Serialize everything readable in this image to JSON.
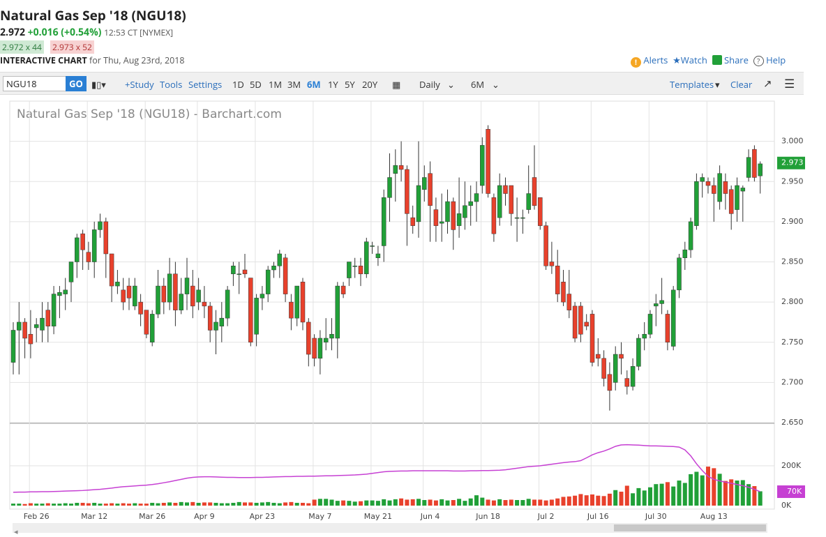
{
  "header": {
    "title": "Natural Gas Sep '18 (NGU18)",
    "last": "2.972",
    "change": "+0.016 (+0.54%)",
    "time": "12:53 CT [NYMEX]",
    "bid": "2.972 x 44",
    "ask": "2.973 x 52",
    "chart_label": "INTERACTIVE CHART",
    "chart_date": "for Thu, Aug 23rd, 2018",
    "links": [
      "Alerts",
      "Watch",
      "Share",
      "Help"
    ]
  },
  "toolbar": {
    "symbol": "NGU18",
    "go": "GO",
    "tools": [
      "+Study",
      "Tools",
      "Settings"
    ],
    "ranges": [
      "1D",
      "5D",
      "1M",
      "3M",
      "6M",
      "1Y",
      "5Y",
      "20Y"
    ],
    "active_range": "6M",
    "interval": "Daily",
    "period": "6M",
    "templates": "Templates",
    "clear": "Clear"
  },
  "chart_data": {
    "type": "candlestick",
    "title": "Natural Gas Sep '18 (NGU18) - Barchart.com",
    "categories": [
      null,
      null,
      null,
      null,
      "Feb 26",
      null,
      null,
      null,
      null,
      null,
      null,
      null,
      null,
      null,
      "Mar 12",
      null,
      null,
      null,
      null,
      null,
      null,
      null,
      null,
      null,
      "Mar 26",
      null,
      null,
      null,
      null,
      null,
      null,
      null,
      null,
      "Apr 9",
      null,
      null,
      null,
      null,
      null,
      null,
      null,
      null,
      null,
      "Apr 23",
      null,
      null,
      null,
      null,
      null,
      null,
      null,
      null,
      null,
      "May 7",
      null,
      null,
      null,
      null,
      null,
      null,
      null,
      null,
      null,
      "May 21",
      null,
      null,
      null,
      null,
      null,
      null,
      null,
      null,
      "Jun 4",
      null,
      null,
      null,
      null,
      null,
      null,
      null,
      null,
      null,
      "Jun 18",
      null,
      null,
      null,
      null,
      null,
      null,
      null,
      null,
      null,
      "Jul 2",
      null,
      null,
      null,
      null,
      null,
      null,
      null,
      null,
      "Jul 16",
      null,
      null,
      null,
      null,
      null,
      null,
      null,
      null,
      null,
      "Jul 30",
      null,
      null,
      null,
      null,
      null,
      null,
      null,
      null,
      null,
      "Aug 13",
      null,
      null,
      null,
      null,
      null,
      null,
      null,
      null
    ],
    "open": [
      2.725,
      2.765,
      2.775,
      2.76,
      2.768,
      2.765,
      2.79,
      2.77,
      2.808,
      2.81,
      2.825,
      2.85,
      2.885,
      2.862,
      2.85,
      2.89,
      2.9,
      2.86,
      2.82,
      2.815,
      2.82,
      2.795,
      2.8,
      2.79,
      2.75,
      2.785,
      2.82,
      2.8,
      2.835,
      2.79,
      2.81,
      2.82,
      2.8,
      2.8,
      2.795,
      2.765,
      2.77,
      2.78,
      2.835,
      2.835,
      2.84,
      2.83,
      2.76,
      2.805,
      2.81,
      2.84,
      2.845,
      2.855,
      2.8,
      2.78,
      2.825,
      2.775,
      2.755,
      2.73,
      2.75,
      2.755,
      2.755,
      2.82,
      2.83,
      2.845,
      2.845,
      2.835,
      2.87,
      2.855,
      2.87,
      2.93,
      2.96,
      2.97,
      2.965,
      2.905,
      2.9,
      2.94,
      2.96,
      2.915,
      2.898,
      2.9,
      2.925,
      2.895,
      2.905,
      2.92,
      2.925,
      2.945,
      3.015,
      2.93,
      2.905,
      2.945,
      2.945,
      2.905,
      2.905,
      2.915,
      2.955,
      2.93,
      2.895,
      2.85,
      2.845,
      2.825,
      2.81,
      2.795,
      2.795,
      2.775,
      2.785,
      2.735,
      2.73,
      2.71,
      2.7,
      2.735,
      2.705,
      2.695,
      2.72,
      2.755,
      2.76,
      2.795,
      2.798,
      2.785,
      2.745,
      2.815,
      2.855,
      2.865,
      2.895,
      2.95,
      2.95,
      2.945,
      2.925,
      2.95,
      2.94,
      2.915,
      2.938,
      2.955,
      2.99,
      2.957
    ],
    "high": [
      2.775,
      2.8,
      2.78,
      2.79,
      2.78,
      2.8,
      2.8,
      2.82,
      2.82,
      2.83,
      2.85,
      2.885,
      2.89,
      2.875,
      2.9,
      2.91,
      2.905,
      2.86,
      2.84,
      2.83,
      2.83,
      2.83,
      2.81,
      2.79,
      2.79,
      2.84,
      2.83,
      2.855,
      2.85,
      2.83,
      2.855,
      2.84,
      2.83,
      2.82,
      2.8,
      2.79,
      2.8,
      2.82,
      2.85,
      2.85,
      2.86,
      2.83,
      2.81,
      2.82,
      2.845,
      2.85,
      2.865,
      2.86,
      2.81,
      2.82,
      2.83,
      2.78,
      2.76,
      2.765,
      2.78,
      2.78,
      2.825,
      2.825,
      2.85,
      2.855,
      2.855,
      2.88,
      2.875,
      2.87,
      2.94,
      2.985,
      2.99,
      3.0,
      2.97,
      2.92,
      3.0,
      2.97,
      2.975,
      2.93,
      2.935,
      2.94,
      2.93,
      2.955,
      2.95,
      2.945,
      2.95,
      3.005,
      3.02,
      2.935,
      2.96,
      2.955,
      2.945,
      2.93,
      2.915,
      2.97,
      2.995,
      2.93,
      2.9,
      2.875,
      2.865,
      2.84,
      2.84,
      2.8,
      2.8,
      2.785,
      2.79,
      2.755,
      2.74,
      2.725,
      2.745,
      2.75,
      2.715,
      2.73,
      2.76,
      2.775,
      2.79,
      2.81,
      2.83,
      2.79,
      2.82,
      2.86,
      2.875,
      2.905,
      2.96,
      2.96,
      2.955,
      2.955,
      2.97,
      2.96,
      2.945,
      2.955,
      2.945,
      2.99,
      2.995,
      2.975
    ],
    "low": [
      2.71,
      2.71,
      2.73,
      2.73,
      2.75,
      2.75,
      2.75,
      2.76,
      2.78,
      2.79,
      2.8,
      2.83,
      2.84,
      2.84,
      2.83,
      2.88,
      2.83,
      2.8,
      2.81,
      2.79,
      2.79,
      2.79,
      2.77,
      2.755,
      2.745,
      2.78,
      2.785,
      2.79,
      2.77,
      2.785,
      2.79,
      2.78,
      2.79,
      2.78,
      2.75,
      2.735,
      2.75,
      2.77,
      2.82,
      2.81,
      2.83,
      2.745,
      2.745,
      2.79,
      2.8,
      2.83,
      2.83,
      2.8,
      2.765,
      2.77,
      2.765,
      2.72,
      2.72,
      2.71,
      2.74,
      2.74,
      2.73,
      2.805,
      2.82,
      2.83,
      2.82,
      2.83,
      2.86,
      2.845,
      2.85,
      2.9,
      2.925,
      2.95,
      2.87,
      2.885,
      2.88,
      2.925,
      2.875,
      2.875,
      2.875,
      2.885,
      2.865,
      2.88,
      2.89,
      2.895,
      2.9,
      2.935,
      2.93,
      2.875,
      2.895,
      2.92,
      2.895,
      2.875,
      2.885,
      2.91,
      2.915,
      2.89,
      2.84,
      2.835,
      2.8,
      2.795,
      2.78,
      2.75,
      2.75,
      2.765,
      2.72,
      2.72,
      2.695,
      2.665,
      2.69,
      2.71,
      2.685,
      2.69,
      2.715,
      2.74,
      2.755,
      2.77,
      2.785,
      2.74,
      2.74,
      2.805,
      2.84,
      2.855,
      2.89,
      2.93,
      2.935,
      2.9,
      2.915,
      2.915,
      2.89,
      2.9,
      2.9,
      2.95,
      2.95,
      2.935
    ],
    "close": [
      2.765,
      2.775,
      2.755,
      2.748,
      2.772,
      2.78,
      2.77,
      2.81,
      2.812,
      2.815,
      2.85,
      2.88,
      2.865,
      2.85,
      2.89,
      2.9,
      2.86,
      2.82,
      2.825,
      2.8,
      2.805,
      2.82,
      2.785,
      2.76,
      2.785,
      2.82,
      2.8,
      2.835,
      2.79,
      2.81,
      2.83,
      2.795,
      2.815,
      2.795,
      2.765,
      2.775,
      2.78,
      2.815,
      2.845,
      2.835,
      2.835,
      2.75,
      2.805,
      2.81,
      2.84,
      2.845,
      2.86,
      2.81,
      2.78,
      2.82,
      2.775,
      2.735,
      2.73,
      2.755,
      2.755,
      2.76,
      2.82,
      2.81,
      2.85,
      2.845,
      2.835,
      2.875,
      2.87,
      2.86,
      2.93,
      2.955,
      2.97,
      2.965,
      2.91,
      2.895,
      2.945,
      2.955,
      2.92,
      2.895,
      2.9,
      2.925,
      2.89,
      2.91,
      2.92,
      2.925,
      2.935,
      2.995,
      2.935,
      2.885,
      2.945,
      2.935,
      2.91,
      2.905,
      2.905,
      2.935,
      2.92,
      2.895,
      2.845,
      2.845,
      2.81,
      2.8,
      2.79,
      2.755,
      2.76,
      2.77,
      2.725,
      2.73,
      2.705,
      2.69,
      2.735,
      2.73,
      2.695,
      2.72,
      2.755,
      2.76,
      2.785,
      2.798,
      2.802,
      2.75,
      2.815,
      2.855,
      2.865,
      2.9,
      2.95,
      2.955,
      2.945,
      2.935,
      2.96,
      2.935,
      2.91,
      2.945,
      2.942,
      2.98,
      2.955,
      2.972
    ],
    "volume": [
      10000,
      10000,
      8000,
      12000,
      10000,
      10000,
      12000,
      10000,
      10000,
      12000,
      10000,
      14000,
      14000,
      12000,
      14000,
      10000,
      10000,
      12000,
      10000,
      12000,
      10000,
      12000,
      10000,
      10000,
      14000,
      12000,
      14000,
      16000,
      14000,
      18000,
      16000,
      18000,
      14000,
      16000,
      16000,
      14000,
      12000,
      12000,
      14000,
      18000,
      16000,
      16000,
      14000,
      16000,
      18000,
      14000,
      12000,
      16000,
      18000,
      14000,
      14000,
      12000,
      30000,
      34000,
      34000,
      30000,
      24000,
      26000,
      24000,
      20000,
      22000,
      26000,
      26000,
      24000,
      32000,
      26000,
      32000,
      36000,
      30000,
      32000,
      34000,
      28000,
      30000,
      26000,
      32000,
      26000,
      28000,
      34000,
      24000,
      36000,
      52000,
      40000,
      30000,
      26000,
      32000,
      28000,
      30000,
      28000,
      28000,
      34000,
      30000,
      30000,
      26000,
      30000,
      36000,
      44000,
      46000,
      50000,
      58000,
      52000,
      56000,
      50000,
      48000,
      60000,
      78000,
      70000,
      100000,
      62000,
      88000,
      76000,
      92000,
      108000,
      110000,
      118000,
      96000,
      126000,
      114000,
      158000,
      170000,
      152000,
      196000,
      188000,
      160000,
      124000,
      132000,
      126000,
      128000,
      108000,
      98000,
      72000
    ],
    "volume_ma": [
      67000,
      68000,
      68000,
      69000,
      69000,
      70000,
      70000,
      71000,
      72000,
      73000,
      74000,
      75000,
      76000,
      78000,
      80000,
      82000,
      85000,
      88000,
      92000,
      95000,
      97000,
      99000,
      101000,
      103000,
      106000,
      110000,
      115000,
      120000,
      126000,
      132000,
      138000,
      142000,
      144000,
      145000,
      145000,
      144000,
      143000,
      142000,
      142000,
      141000,
      141000,
      141000,
      142000,
      142000,
      143000,
      144000,
      145000,
      146000,
      146000,
      147000,
      147000,
      148000,
      148000,
      149000,
      150000,
      150000,
      151000,
      152000,
      153000,
      154000,
      156000,
      158000,
      162000,
      166000,
      170000,
      172000,
      173000,
      174000,
      174000,
      175000,
      175000,
      175000,
      175000,
      175000,
      175000,
      175000,
      174000,
      174000,
      174000,
      175000,
      175000,
      176000,
      176000,
      177000,
      178000,
      180000,
      184000,
      188000,
      192000,
      196000,
      198000,
      200000,
      204000,
      208000,
      212000,
      216000,
      219000,
      221000,
      226000,
      240000,
      255000,
      266000,
      274000,
      285000,
      298000,
      305000,
      306000,
      305000,
      304000,
      302000,
      300000,
      300000,
      299000,
      298000,
      297000,
      294000,
      280000,
      250000,
      210000,
      176000,
      147000,
      132000,
      124000,
      118000,
      112000,
      106000,
      100000,
      92000,
      82000,
      70000
    ],
    "up_color": "#21a038",
    "down_color": "#e8412c",
    "ma_color": "#c640d3",
    "ylim": [
      2.65,
      3.05
    ],
    "yticks": [
      {
        "value": 2.65,
        "label": "2.650"
      },
      {
        "value": 2.7,
        "label": "2.700"
      },
      {
        "value": 2.75,
        "label": "2.750"
      },
      {
        "value": 2.8,
        "label": "2.800"
      },
      {
        "value": 2.85,
        "label": "2.850"
      },
      {
        "value": 2.9,
        "label": "2.900"
      },
      {
        "value": 2.95,
        "label": "2.950"
      },
      {
        "value": 3,
        "label": "3.000"
      }
    ],
    "volume_ylim": [
      0,
      410000
    ],
    "volume_yticks": [
      {
        "value": 0,
        "label": "0K"
      },
      {
        "value": 200000,
        "label": "200K"
      }
    ],
    "last_price": {
      "value": 2.973,
      "label": "2.973"
    },
    "volume_ma_last": {
      "value": 70000,
      "label": "70K"
    },
    "grid": true
  }
}
